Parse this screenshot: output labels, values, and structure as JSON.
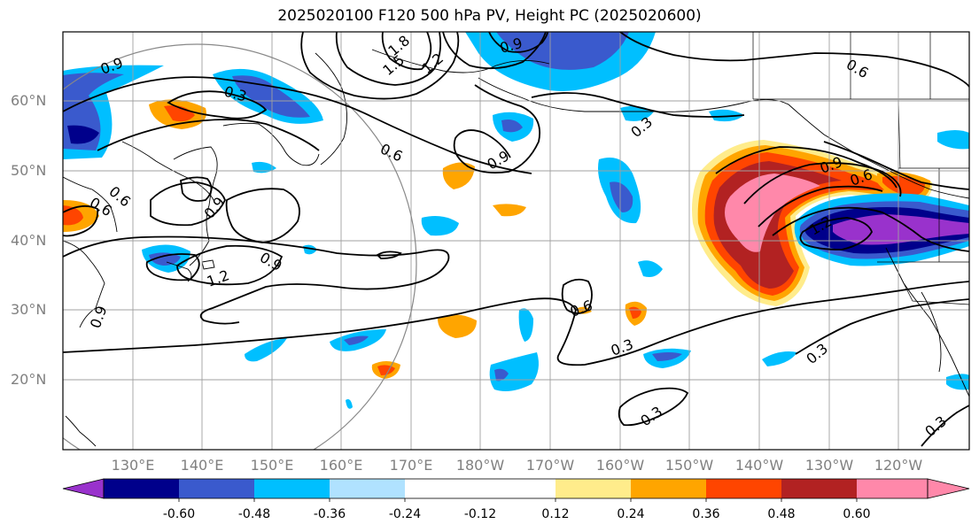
{
  "title": "2025020100 F120 500 hPa PV, Height PC (2025020600)",
  "map": {
    "lat_labels": [
      "60°N",
      "50°N",
      "40°N",
      "30°N",
      "20°N"
    ],
    "lon_labels": [
      "130°E",
      "140°E",
      "150°E",
      "160°E",
      "170°E",
      "180°W",
      "170°W",
      "160°W",
      "150°W",
      "140°W",
      "130°W",
      "120°W"
    ],
    "contour_labels": [
      "0.9",
      "0.3",
      "0.6",
      "1.8",
      "1.5",
      "1.2",
      "0.9",
      "0.3",
      "0.6",
      "0.9",
      "0.6",
      "0.9",
      "0.6",
      "1.2",
      "0.9",
      "0.9",
      "0.6",
      "0.9",
      "1.2",
      "0.3",
      "0.3",
      "0.3",
      "0.3",
      "0.6"
    ]
  },
  "colorbar": {
    "colors": [
      "#9932cc",
      "#00008b",
      "#3a5acd",
      "#00bfff",
      "#b0e2ff",
      "#ffffff",
      "#ffec8b",
      "#ffa500",
      "#ff4500",
      "#b22222",
      "#ff88aa"
    ],
    "tick_labels": [
      "-0.60",
      "-0.48",
      "-0.36",
      "-0.24",
      "-0.12",
      "0.12",
      "0.24",
      "0.36",
      "0.48",
      "0.60"
    ]
  }
}
